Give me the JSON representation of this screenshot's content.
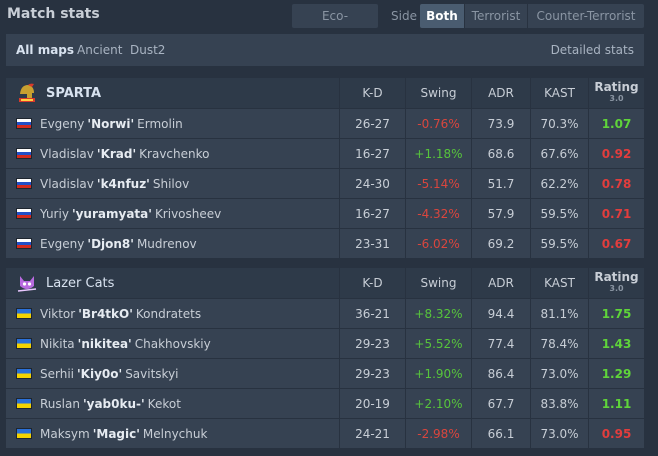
{
  "title": "Match stats",
  "toggles": {
    "eco_adjusted": "Eco-adjusted",
    "side_label": "Side",
    "both": "Both",
    "terrorist": "Terrorist",
    "counter_terrorist": "Counter-Terrorist"
  },
  "maps": {
    "all": "All maps",
    "map1": "Ancient",
    "map2": "Dust2",
    "detailed": "Detailed stats"
  },
  "columns": {
    "kd": "K-D",
    "swing": "Swing",
    "adr": "ADR",
    "kast": "KAST",
    "rating": "Rating",
    "rating_ver": "3.0"
  },
  "teams": [
    {
      "name": "SPARTA",
      "players": [
        {
          "first": "Evgeny",
          "nick": "'Norwi'",
          "last": "Ermolin",
          "kd": "26-27",
          "swing": "-0.76%",
          "adr": "73.9",
          "kast": "70.3%",
          "rating": "1.07"
        },
        {
          "first": "Vladislav",
          "nick": "'Krad'",
          "last": "Kravchenko",
          "kd": "16-27",
          "swing": "+1.18%",
          "adr": "68.6",
          "kast": "67.6%",
          "rating": "0.92"
        },
        {
          "first": "Vladislav",
          "nick": "'k4nfuz'",
          "last": "Shilov",
          "kd": "24-30",
          "swing": "-5.14%",
          "adr": "51.7",
          "kast": "62.2%",
          "rating": "0.78"
        },
        {
          "first": "Yuriy",
          "nick": "'yuramyata'",
          "last": "Krivosheev",
          "kd": "16-27",
          "swing": "-4.32%",
          "adr": "57.9",
          "kast": "59.5%",
          "rating": "0.71"
        },
        {
          "first": "Evgeny",
          "nick": "'Djon8'",
          "last": "Mudrenov",
          "kd": "23-31",
          "swing": "-6.02%",
          "adr": "69.2",
          "kast": "59.5%",
          "rating": "0.67"
        }
      ]
    },
    {
      "name": "Lazer Cats",
      "players": [
        {
          "first": "Viktor",
          "nick": "'Br4tkO'",
          "last": "Kondratets",
          "kd": "36-21",
          "swing": "+8.32%",
          "adr": "94.4",
          "kast": "81.1%",
          "rating": "1.75"
        },
        {
          "first": "Nikita",
          "nick": "'nikitea'",
          "last": "Chakhovskiy",
          "kd": "29-23",
          "swing": "+5.52%",
          "adr": "77.4",
          "kast": "78.4%",
          "rating": "1.43"
        },
        {
          "first": "Serhii",
          "nick": "'Kiy0o'",
          "last": "Savitskyi",
          "kd": "29-23",
          "swing": "+1.90%",
          "adr": "86.4",
          "kast": "73.0%",
          "rating": "1.29"
        },
        {
          "first": "Ruslan",
          "nick": "'yab0ku-'",
          "last": "Kekot",
          "kd": "20-19",
          "swing": "+2.10%",
          "adr": "67.7",
          "kast": "83.8%",
          "rating": "1.11"
        },
        {
          "first": "Maksym",
          "nick": "'Magic'",
          "last": "Melnychuk",
          "kd": "24-21",
          "swing": "-2.98%",
          "adr": "66.1",
          "kast": "73.0%",
          "rating": "0.95"
        }
      ]
    }
  ]
}
